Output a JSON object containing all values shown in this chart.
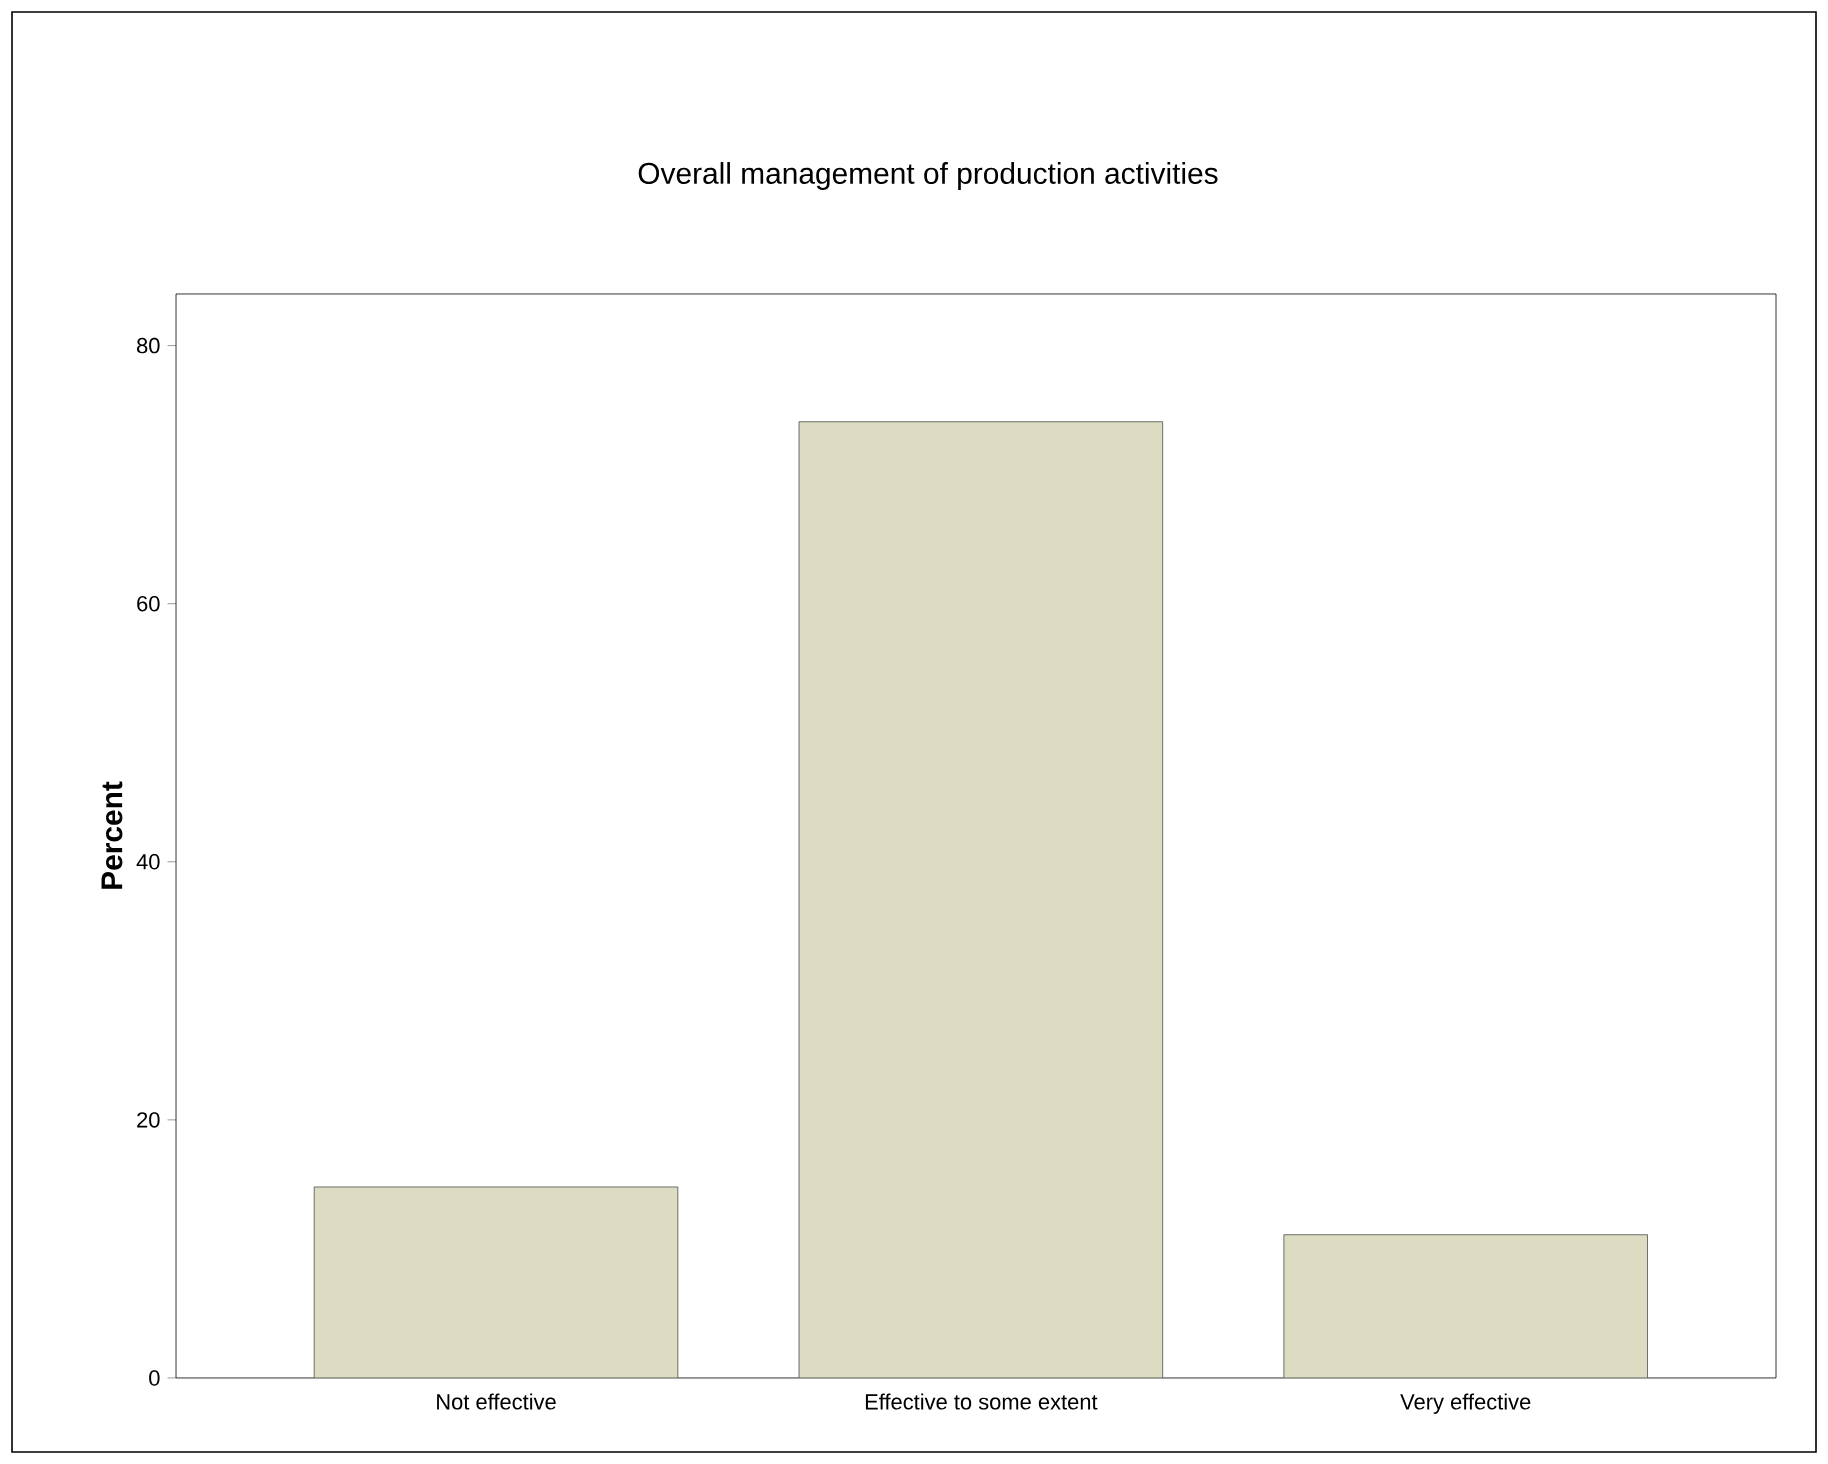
{
  "chart_data": {
    "type": "bar",
    "title": "Overall management of production activities",
    "ylabel": "Percent",
    "categories": [
      "Not effective",
      "Effective to some extent",
      "Very effective"
    ],
    "values": [
      14.8,
      74.1,
      11.1
    ],
    "color": "#dcdcc2",
    "ylim": [
      0,
      84
    ],
    "yticks": [
      0,
      20,
      40,
      60,
      80
    ]
  }
}
